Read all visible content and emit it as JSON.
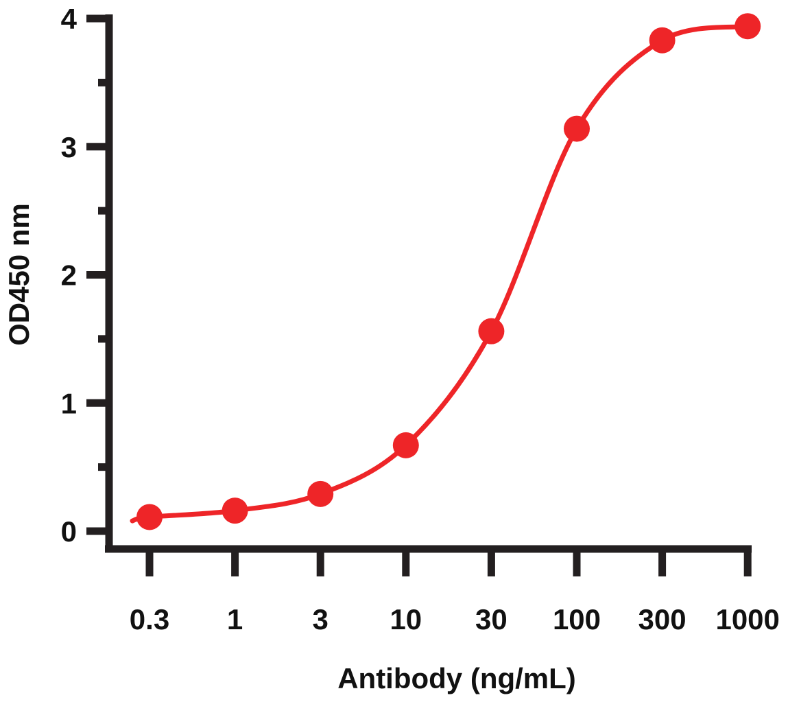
{
  "chart_data": {
    "type": "line",
    "title": "",
    "xlabel": "Antibody (ng/mL)",
    "ylabel": "OD450 nm",
    "x_scale": "log (evenly spaced dilution series)",
    "categories": [
      "0.3",
      "1",
      "3",
      "10",
      "30",
      "100",
      "300",
      "1000"
    ],
    "x": [
      0.3,
      1,
      3,
      10,
      30,
      100,
      300,
      1000
    ],
    "series": [
      {
        "values": [
          0.11,
          0.16,
          0.29,
          0.67,
          1.56,
          3.14,
          3.83,
          3.94
        ],
        "markers": "filled-circle",
        "fit_line": "sigmoidal curve",
        "color": "#ee2528"
      }
    ],
    "ylim": [
      0,
      4
    ],
    "yticks": [
      "0",
      "1",
      "2",
      "3",
      "4"
    ],
    "y_minor_ticks": [
      0.5,
      1.5,
      2.5,
      3.5
    ],
    "grid": false,
    "legend": "none",
    "axis_color": "#231f20"
  }
}
